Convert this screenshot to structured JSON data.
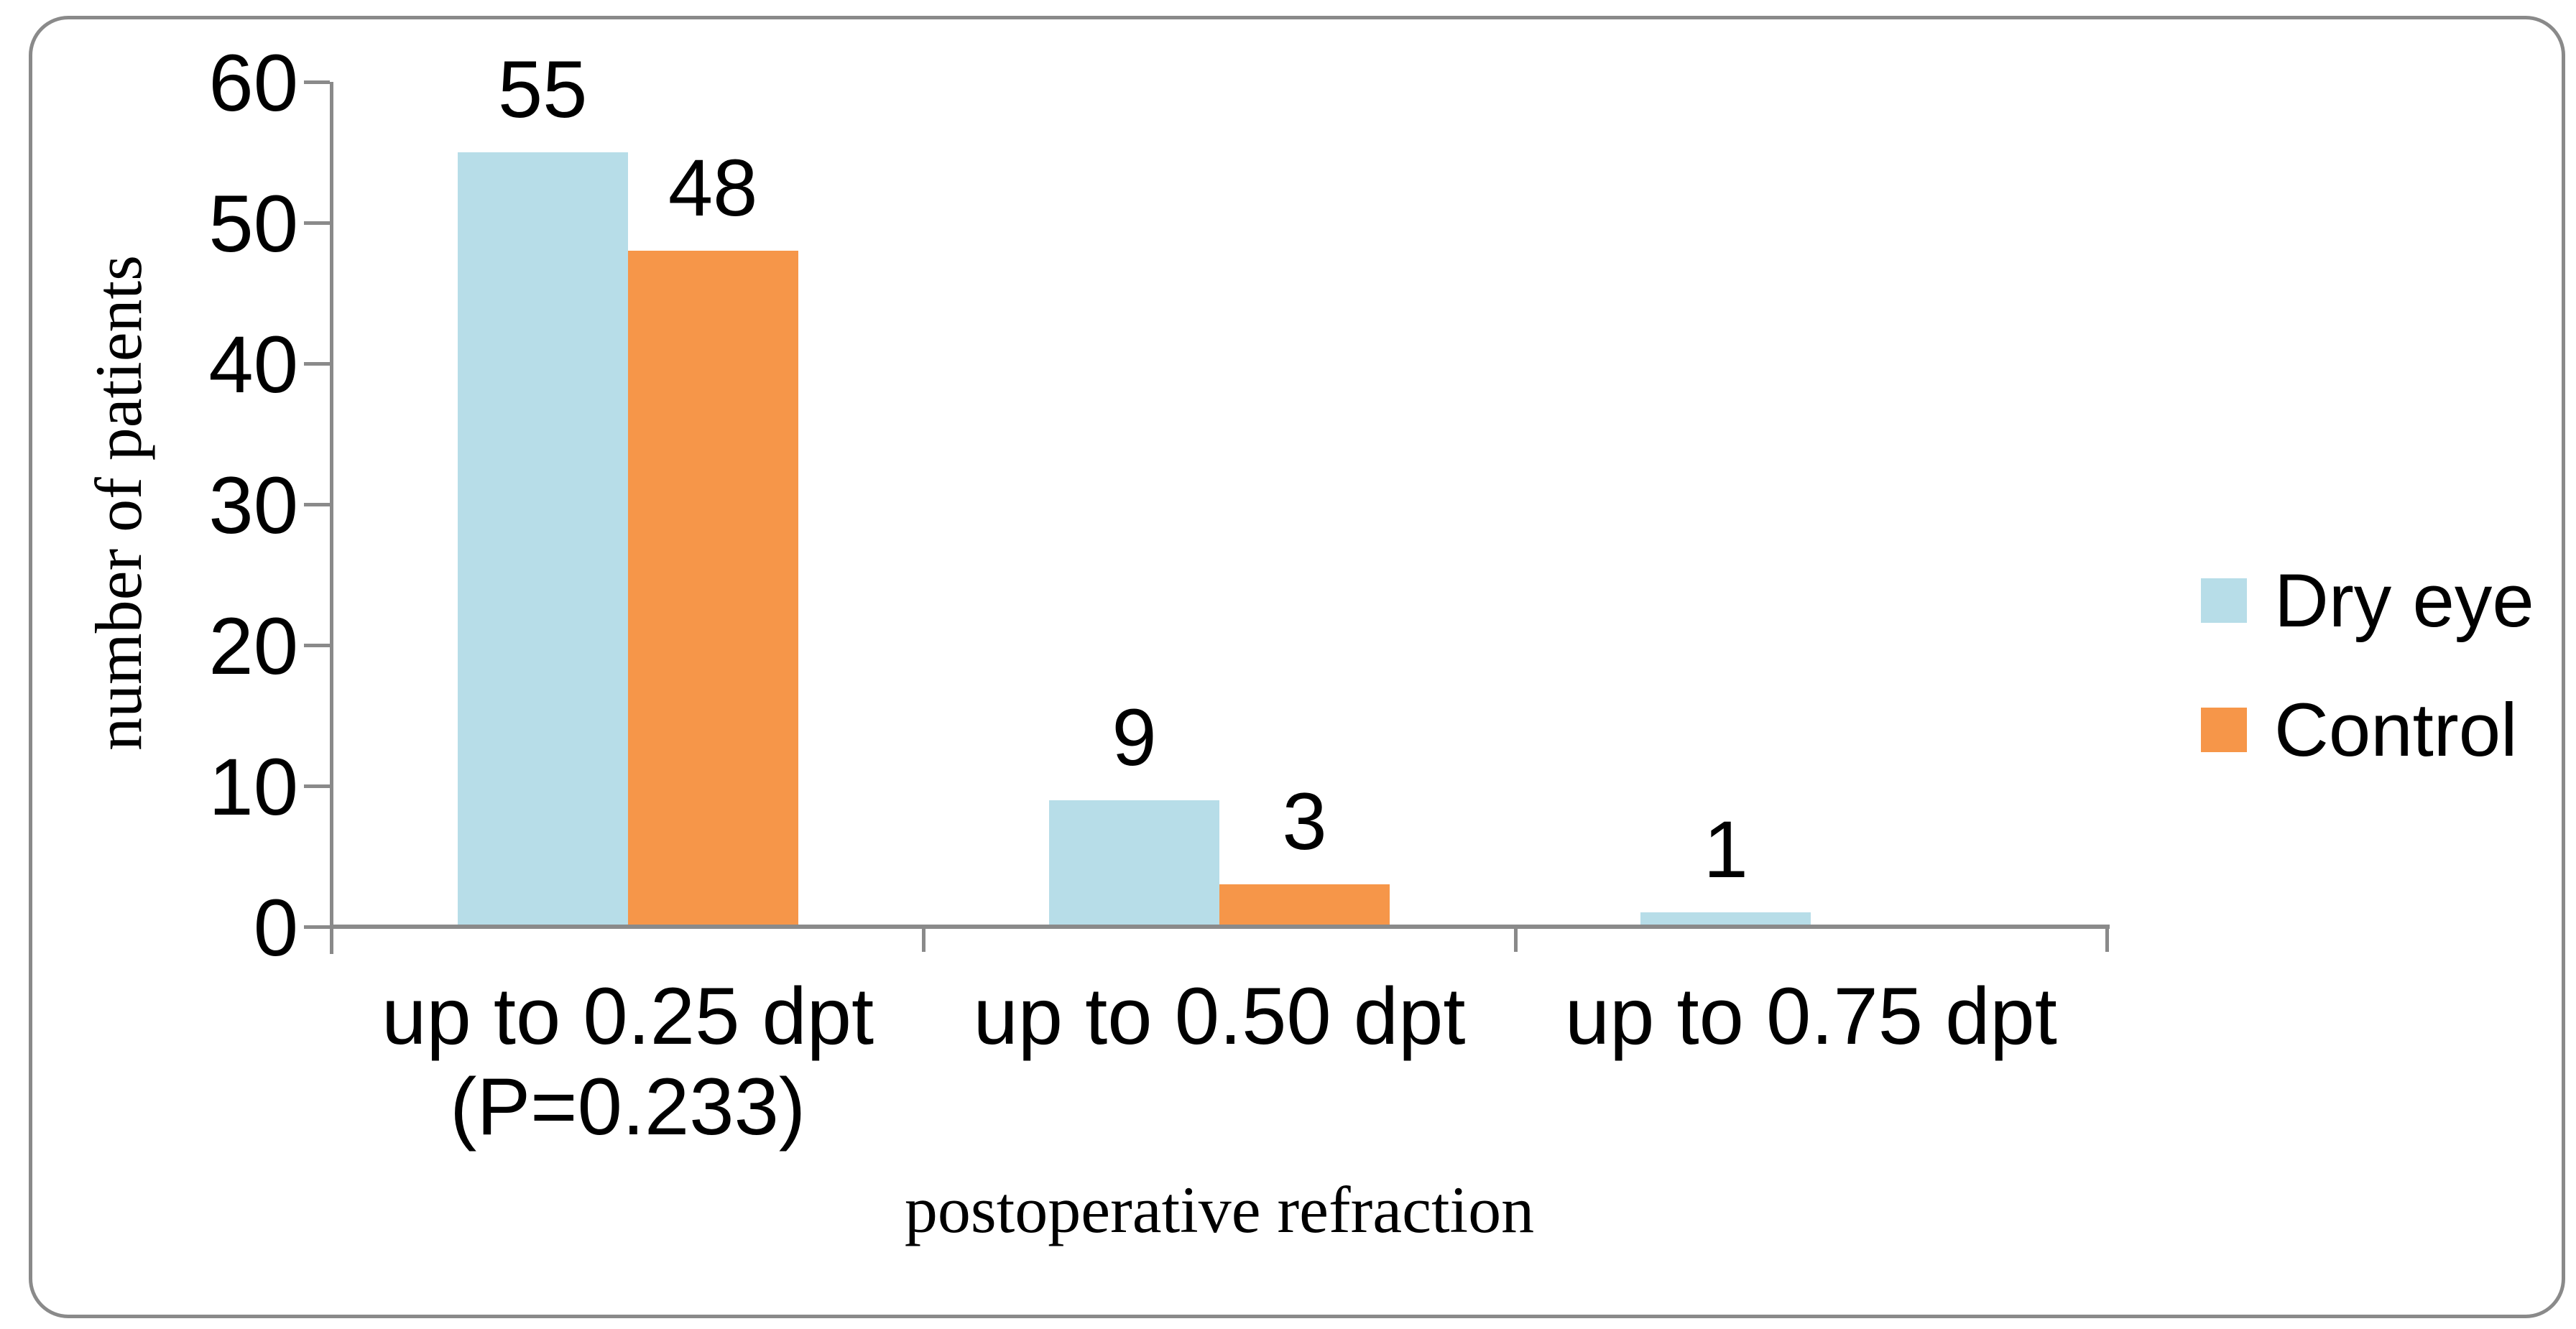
{
  "chart_data": {
    "type": "bar",
    "categories": [
      "up to 0.25 dpt\n(P=0.233)",
      "up to 0.50 dpt",
      "up to 0.75 dpt"
    ],
    "series": [
      {
        "name": "Dry eye",
        "color": "#B7DDE8",
        "values": [
          55,
          9,
          1
        ]
      },
      {
        "name": "Control",
        "color": "#F69649",
        "values": [
          48,
          3,
          0
        ]
      }
    ],
    "bar_value_labels": [
      "55",
      "48",
      "9",
      "3",
      "1"
    ],
    "xlabel": "postoperative refraction",
    "ylabel": "number of patients",
    "ylim": [
      0,
      60
    ],
    "yticks": [
      0,
      10,
      20,
      30,
      40,
      50,
      60
    ],
    "grid": false,
    "legend_position": "right",
    "axis_color": "#8A8A8A",
    "frame_color": "#8A8A8A",
    "text_color": "#000000"
  }
}
